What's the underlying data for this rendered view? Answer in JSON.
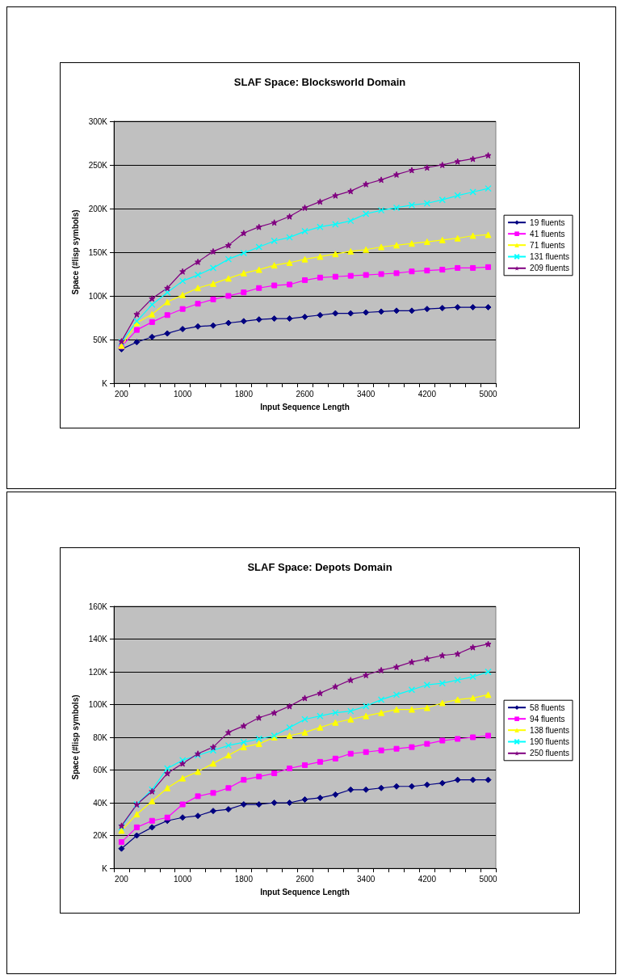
{
  "chart_data": [
    {
      "type": "line",
      "title": "SLAF Space: Blocksworld Domain",
      "xlabel": "Input Sequence Length",
      "ylabel": "Space (#lisp symbols)",
      "categories": [
        "200",
        null,
        null,
        null,
        "1000",
        null,
        null,
        null,
        "1800",
        null,
        null,
        null,
        "2600",
        null,
        null,
        null,
        "3400",
        null,
        null,
        null,
        "4200",
        null,
        null,
        null,
        "5000"
      ],
      "series": [
        {
          "name": "19 fluents",
          "color": "#000080",
          "marker": "diamond",
          "values": [
            39000,
            47000,
            53000,
            57000,
            62000,
            65000,
            66000,
            69000,
            71000,
            73000,
            74000,
            74000,
            76000,
            78000,
            80000,
            80000,
            81000,
            82000,
            83000,
            83000,
            85000,
            86000,
            87000,
            87000,
            87000
          ]
        },
        {
          "name": "41 fluents",
          "color": "#ff00ff",
          "marker": "square",
          "values": [
            42000,
            61000,
            70000,
            78000,
            85000,
            91000,
            96000,
            100000,
            104000,
            109000,
            112000,
            113000,
            118000,
            121000,
            122000,
            123000,
            124000,
            125000,
            126000,
            128000,
            129000,
            130000,
            132000,
            132000,
            133000
          ]
        },
        {
          "name": "71 fluents",
          "color": "#ffff00",
          "marker": "triangle",
          "values": [
            43000,
            69000,
            79000,
            93000,
            101000,
            109000,
            114000,
            120000,
            126000,
            130000,
            135000,
            138000,
            142000,
            145000,
            148000,
            151000,
            153000,
            156000,
            158000,
            160000,
            162000,
            164000,
            166000,
            169000,
            170000
          ]
        },
        {
          "name": "131 fluents",
          "color": "#00ffff",
          "marker": "cross",
          "values": [
            47000,
            71000,
            90000,
            104000,
            117000,
            124000,
            132000,
            142000,
            149000,
            156000,
            163000,
            167000,
            174000,
            179000,
            182000,
            186000,
            194000,
            198000,
            201000,
            204000,
            206000,
            210000,
            215000,
            219000,
            223000
          ]
        },
        {
          "name": "209 fluents",
          "color": "#800080",
          "marker": "star",
          "values": [
            48000,
            79000,
            97000,
            109000,
            128000,
            139000,
            151000,
            158000,
            172000,
            179000,
            184000,
            191000,
            201000,
            208000,
            215000,
            220000,
            228000,
            233000,
            239000,
            244000,
            247000,
            250000,
            254000,
            257000,
            261000
          ]
        }
      ],
      "ylim": [
        0,
        300000
      ],
      "yticks": [
        {
          "value": 0,
          "label": "K"
        },
        {
          "value": 50000,
          "label": "50K"
        },
        {
          "value": 100000,
          "label": "100K"
        },
        {
          "value": 150000,
          "label": "150K"
        },
        {
          "value": 200000,
          "label": "200K"
        },
        {
          "value": 250000,
          "label": "250K"
        },
        {
          "value": 300000,
          "label": "300K"
        }
      ],
      "grid": "y",
      "legend": "right",
      "line_style": "solid"
    },
    {
      "type": "line",
      "title": "SLAF Space: Depots Domain",
      "xlabel": "Input Sequence Length",
      "ylabel": "Space (#lisp symbols)",
      "categories": [
        "200",
        null,
        null,
        null,
        "1000",
        null,
        null,
        null,
        "1800",
        null,
        null,
        null,
        "2600",
        null,
        null,
        null,
        "3400",
        null,
        null,
        null,
        "4200",
        null,
        null,
        null,
        "5000"
      ],
      "series": [
        {
          "name": "58 fluents",
          "color": "#000080",
          "marker": "diamond",
          "values": [
            12000,
            20000,
            25000,
            29000,
            31000,
            32000,
            35000,
            36000,
            39000,
            39000,
            40000,
            40000,
            42000,
            43000,
            45000,
            48000,
            48000,
            49000,
            50000,
            50000,
            51000,
            52000,
            54000,
            54000,
            54000
          ]
        },
        {
          "name": "94 fluents",
          "color": "#ff00ff",
          "marker": "square",
          "values": [
            16000,
            25000,
            29000,
            31000,
            39000,
            44000,
            46000,
            49000,
            54000,
            56000,
            58000,
            61000,
            63000,
            65000,
            67000,
            70000,
            71000,
            72000,
            73000,
            74000,
            76000,
            78000,
            79000,
            80000,
            81000
          ]
        },
        {
          "name": "138 fluents",
          "color": "#ffff00",
          "marker": "triangle",
          "values": [
            23000,
            33000,
            41000,
            49000,
            55000,
            59000,
            64000,
            69000,
            74000,
            76000,
            80000,
            81000,
            83000,
            86000,
            89000,
            91000,
            93000,
            95000,
            97000,
            97000,
            98000,
            101000,
            103000,
            104000,
            106000
          ]
        },
        {
          "name": "190 fluents",
          "color": "#00ffff",
          "marker": "cross",
          "values": [
            25000,
            39000,
            48000,
            61000,
            66000,
            69000,
            72000,
            75000,
            77000,
            79000,
            81000,
            86000,
            91000,
            93000,
            95000,
            96000,
            99000,
            103000,
            106000,
            109000,
            112000,
            113000,
            115000,
            117000,
            120000
          ]
        },
        {
          "name": "250 fluents",
          "color": "#800080",
          "marker": "star",
          "values": [
            26000,
            39000,
            47000,
            58000,
            64000,
            70000,
            74000,
            83000,
            87000,
            92000,
            95000,
            99000,
            104000,
            107000,
            111000,
            115000,
            118000,
            121000,
            123000,
            126000,
            128000,
            130000,
            131000,
            135000,
            137000
          ]
        }
      ],
      "ylim": [
        0,
        160000
      ],
      "yticks": [
        {
          "value": 0,
          "label": "K"
        },
        {
          "value": 20000,
          "label": "20K"
        },
        {
          "value": 40000,
          "label": "40K"
        },
        {
          "value": 60000,
          "label": "60K"
        },
        {
          "value": 80000,
          "label": "80K"
        },
        {
          "value": 100000,
          "label": "100K"
        },
        {
          "value": 120000,
          "label": "120K"
        },
        {
          "value": 140000,
          "label": "140K"
        },
        {
          "value": 160000,
          "label": "160K"
        }
      ],
      "grid": "y",
      "legend": "right",
      "line_style": "solid"
    }
  ]
}
